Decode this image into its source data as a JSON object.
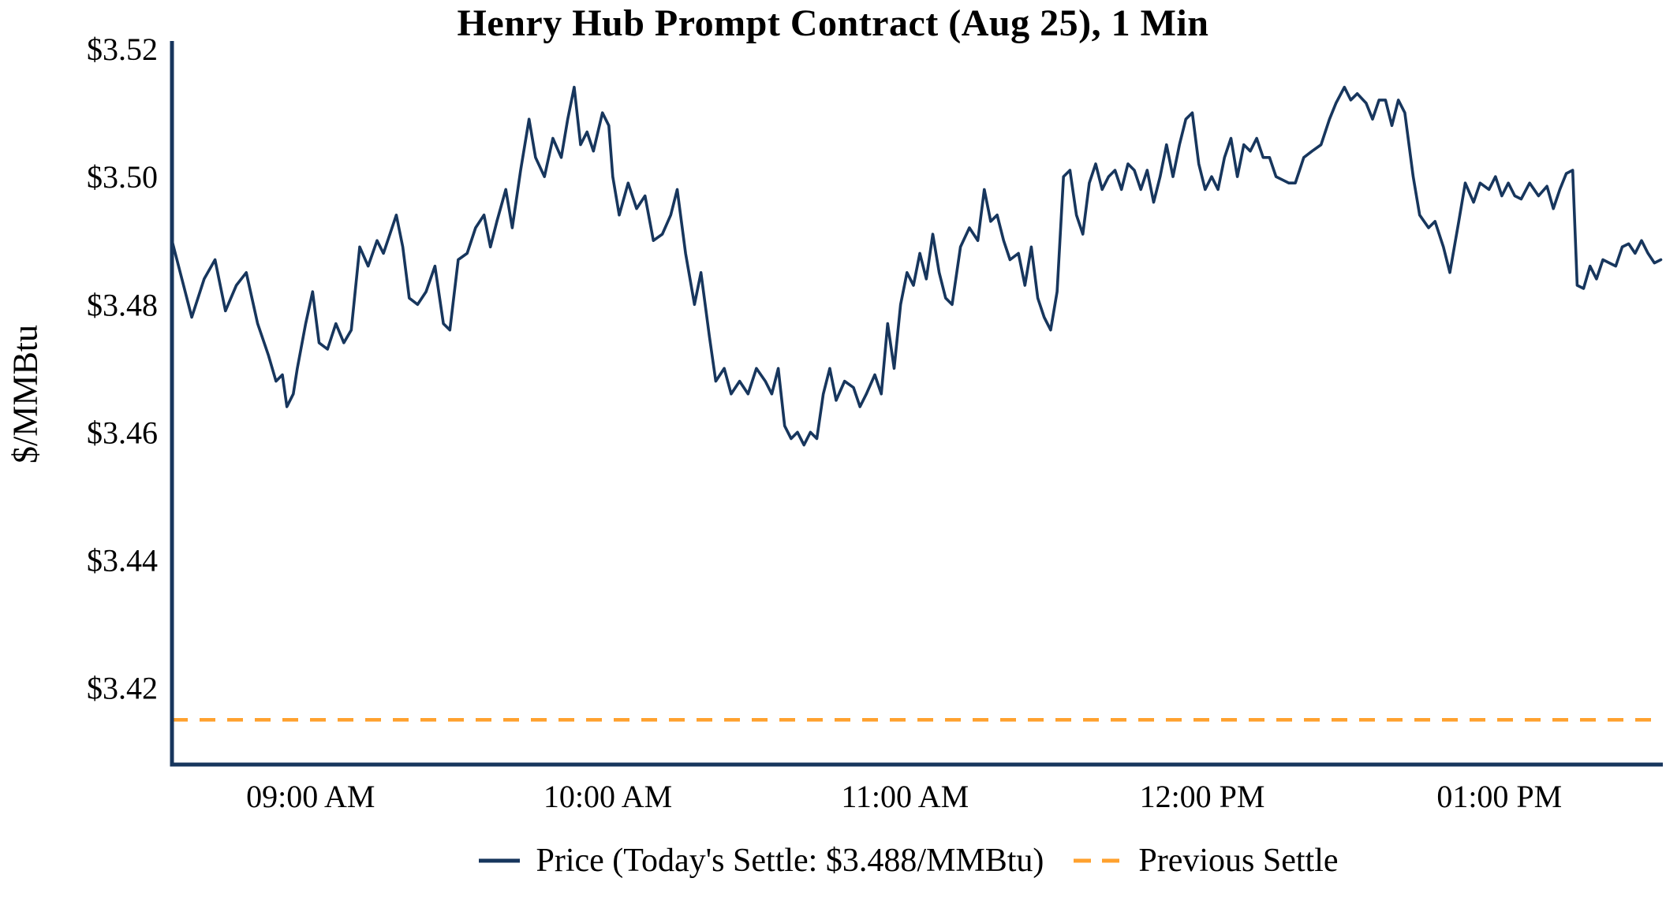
{
  "title": "Henry Hub Prompt Contract (Aug 25), 1 Min",
  "ylabel": "$/MMBtu",
  "legend": [
    {
      "label": "Price (Today's Settle: $3.488/MMBtu)",
      "color": "#17365d",
      "style": "solid"
    },
    {
      "label": "Previous Settle",
      "color": "#ffa12e",
      "style": "dashed"
    }
  ],
  "colors": {
    "axis": "#17365d",
    "price_line": "#17365d",
    "previous_settle": "#ffa12e",
    "text": "#000000"
  },
  "chart_data": {
    "type": "line",
    "title": "Henry Hub Prompt Contract (Aug 25), 1 Min",
    "xlabel": "",
    "ylabel": "$/MMBtu",
    "ylim": [
      3.408,
      3.52
    ],
    "xlim_minutes": [
      0,
      301
    ],
    "grid": false,
    "legend_position": "bottom",
    "today_settle": 3.488,
    "previous_settle": 3.415,
    "y_ticks": [
      {
        "value": 3.42,
        "label": "$3.42"
      },
      {
        "value": 3.44,
        "label": "$3.44"
      },
      {
        "value": 3.46,
        "label": "$3.46"
      },
      {
        "value": 3.48,
        "label": "$3.48"
      },
      {
        "value": 3.5,
        "label": "$3.50"
      },
      {
        "value": 3.52,
        "label": "$3.52"
      }
    ],
    "x_ticks": [
      {
        "minute": 28,
        "label": "09:00 AM"
      },
      {
        "minute": 88,
        "label": "10:00 AM"
      },
      {
        "minute": 148,
        "label": "11:00 AM"
      },
      {
        "minute": 208,
        "label": "12:00 PM"
      },
      {
        "minute": 268,
        "label": "01:00 PM"
      }
    ],
    "series": [
      {
        "name": "Price (Today's Settle: $3.488/MMBtu)",
        "type": "line",
        "color": "#17365d",
        "points": [
          [
            0,
            3.49
          ],
          [
            2,
            3.484
          ],
          [
            4,
            3.478
          ],
          [
            6.5,
            3.484
          ],
          [
            8.7,
            3.487
          ],
          [
            10.8,
            3.479
          ],
          [
            13,
            3.483
          ],
          [
            15,
            3.485
          ],
          [
            17.3,
            3.477
          ],
          [
            19.5,
            3.472
          ],
          [
            21,
            3.468
          ],
          [
            22.3,
            3.469
          ],
          [
            23.2,
            3.464
          ],
          [
            24.5,
            3.466
          ],
          [
            25.3,
            3.47
          ],
          [
            27,
            3.477
          ],
          [
            28.4,
            3.482
          ],
          [
            29.7,
            3.474
          ],
          [
            31.4,
            3.473
          ],
          [
            33.1,
            3.477
          ],
          [
            34.7,
            3.474
          ],
          [
            36.2,
            3.476
          ],
          [
            37.9,
            3.489
          ],
          [
            39.6,
            3.486
          ],
          [
            41.4,
            3.49
          ],
          [
            42.7,
            3.488
          ],
          [
            44,
            3.491
          ],
          [
            45.3,
            3.494
          ],
          [
            46.6,
            3.489
          ],
          [
            47.9,
            3.481
          ],
          [
            49.6,
            3.48
          ],
          [
            51.3,
            3.482
          ],
          [
            53.1,
            3.486
          ],
          [
            54.8,
            3.477
          ],
          [
            56.1,
            3.476
          ],
          [
            57.8,
            3.487
          ],
          [
            59.6,
            3.488
          ],
          [
            61.3,
            3.492
          ],
          [
            63,
            3.494
          ],
          [
            64.3,
            3.489
          ],
          [
            65.6,
            3.493
          ],
          [
            67.4,
            3.498
          ],
          [
            68.7,
            3.492
          ],
          [
            70.4,
            3.501
          ],
          [
            72.1,
            3.509
          ],
          [
            73.4,
            3.503
          ],
          [
            75.2,
            3.5
          ],
          [
            76.9,
            3.506
          ],
          [
            78.6,
            3.503
          ],
          [
            79.9,
            3.509
          ],
          [
            81.2,
            3.514
          ],
          [
            82.5,
            3.505
          ],
          [
            83.8,
            3.507
          ],
          [
            85.1,
            3.504
          ],
          [
            86.9,
            3.51
          ],
          [
            88.2,
            3.508
          ],
          [
            89,
            3.5
          ],
          [
            90.3,
            3.494
          ],
          [
            92.1,
            3.499
          ],
          [
            93.8,
            3.495
          ],
          [
            95.5,
            3.497
          ],
          [
            97.2,
            3.49
          ],
          [
            99,
            3.491
          ],
          [
            100.7,
            3.494
          ],
          [
            102,
            3.498
          ],
          [
            103.7,
            3.488
          ],
          [
            105.5,
            3.48
          ],
          [
            106.8,
            3.485
          ],
          [
            108.5,
            3.475
          ],
          [
            109.8,
            3.468
          ],
          [
            111.5,
            3.47
          ],
          [
            112.9,
            3.466
          ],
          [
            114.6,
            3.468
          ],
          [
            116.3,
            3.466
          ],
          [
            118,
            3.47
          ],
          [
            119.8,
            3.468
          ],
          [
            121.1,
            3.466
          ],
          [
            122.4,
            3.47
          ],
          [
            123.7,
            3.461
          ],
          [
            125,
            3.459
          ],
          [
            126.3,
            3.46
          ],
          [
            127.6,
            3.458
          ],
          [
            128.9,
            3.46
          ],
          [
            130.2,
            3.459
          ],
          [
            131.5,
            3.466
          ],
          [
            132.8,
            3.47
          ],
          [
            134.1,
            3.465
          ],
          [
            135.8,
            3.468
          ],
          [
            137.6,
            3.467
          ],
          [
            138.9,
            3.464
          ],
          [
            140.2,
            3.466
          ],
          [
            141.9,
            3.469
          ],
          [
            143.2,
            3.466
          ],
          [
            144.5,
            3.477
          ],
          [
            145.8,
            3.47
          ],
          [
            147.1,
            3.48
          ],
          [
            148.4,
            3.485
          ],
          [
            149.7,
            3.483
          ],
          [
            151,
            3.488
          ],
          [
            152.3,
            3.484
          ],
          [
            153.6,
            3.491
          ],
          [
            154.9,
            3.485
          ],
          [
            156.2,
            3.481
          ],
          [
            157.5,
            3.48
          ],
          [
            159.2,
            3.489
          ],
          [
            161,
            3.492
          ],
          [
            162.7,
            3.49
          ],
          [
            164,
            3.498
          ],
          [
            165.3,
            3.493
          ],
          [
            166.6,
            3.494
          ],
          [
            167.9,
            3.49
          ],
          [
            169.2,
            3.487
          ],
          [
            170.9,
            3.488
          ],
          [
            172.2,
            3.483
          ],
          [
            173.5,
            3.489
          ],
          [
            174.8,
            3.481
          ],
          [
            176.1,
            3.478
          ],
          [
            177.4,
            3.476
          ],
          [
            178.7,
            3.482
          ],
          [
            180,
            3.5
          ],
          [
            181.3,
            3.501
          ],
          [
            182.6,
            3.494
          ],
          [
            183.9,
            3.491
          ],
          [
            185.2,
            3.499
          ],
          [
            186.5,
            3.502
          ],
          [
            187.8,
            3.498
          ],
          [
            189.1,
            3.5
          ],
          [
            190.4,
            3.501
          ],
          [
            191.7,
            3.498
          ],
          [
            193,
            3.502
          ],
          [
            194.3,
            3.501
          ],
          [
            195.6,
            3.498
          ],
          [
            196.9,
            3.501
          ],
          [
            198.2,
            3.496
          ],
          [
            199.5,
            3.5
          ],
          [
            200.8,
            3.505
          ],
          [
            202.1,
            3.5
          ],
          [
            203.4,
            3.505
          ],
          [
            204.7,
            3.509
          ],
          [
            206,
            3.51
          ],
          [
            207.3,
            3.502
          ],
          [
            208.6,
            3.498
          ],
          [
            209.9,
            3.5
          ],
          [
            211.2,
            3.498
          ],
          [
            212.5,
            3.503
          ],
          [
            213.8,
            3.506
          ],
          [
            215.1,
            3.5
          ],
          [
            216.4,
            3.505
          ],
          [
            217.7,
            3.504
          ],
          [
            219,
            3.506
          ],
          [
            220.3,
            3.503
          ],
          [
            221.6,
            3.503
          ],
          [
            222.9,
            3.5
          ],
          [
            224.2,
            3.4995
          ],
          [
            225.5,
            3.499
          ],
          [
            226.8,
            3.499
          ],
          [
            228.5,
            3.503
          ],
          [
            230.2,
            3.504
          ],
          [
            232,
            3.505
          ],
          [
            233.7,
            3.509
          ],
          [
            235,
            3.5115
          ],
          [
            236.7,
            3.514
          ],
          [
            238,
            3.512
          ],
          [
            239.3,
            3.513
          ],
          [
            241.1,
            3.5115
          ],
          [
            242.4,
            3.509
          ],
          [
            243.7,
            3.512
          ],
          [
            245,
            3.512
          ],
          [
            246.3,
            3.508
          ],
          [
            247.6,
            3.512
          ],
          [
            248.9,
            3.51
          ],
          [
            250.6,
            3.5
          ],
          [
            251.9,
            3.494
          ],
          [
            253.7,
            3.492
          ],
          [
            255,
            3.493
          ],
          [
            256.7,
            3.489
          ],
          [
            258,
            3.485
          ],
          [
            259.8,
            3.493
          ],
          [
            261.1,
            3.499
          ],
          [
            262.8,
            3.496
          ],
          [
            264.1,
            3.499
          ],
          [
            265.9,
            3.498
          ],
          [
            267.2,
            3.5
          ],
          [
            268.5,
            3.497
          ],
          [
            269.8,
            3.499
          ],
          [
            271.1,
            3.497
          ],
          [
            272.4,
            3.4965
          ],
          [
            274.1,
            3.499
          ],
          [
            275.9,
            3.497
          ],
          [
            277.6,
            3.4985
          ],
          [
            278.9,
            3.495
          ],
          [
            280.2,
            3.498
          ],
          [
            281.5,
            3.5005
          ],
          [
            282.8,
            3.501
          ],
          [
            283.7,
            3.483
          ],
          [
            285,
            3.4825
          ],
          [
            286.3,
            3.486
          ],
          [
            287.6,
            3.484
          ],
          [
            288.9,
            3.487
          ],
          [
            290.2,
            3.4865
          ],
          [
            291.5,
            3.486
          ],
          [
            292.8,
            3.489
          ],
          [
            294.1,
            3.4895
          ],
          [
            295.4,
            3.488
          ],
          [
            296.7,
            3.49
          ],
          [
            298,
            3.488
          ],
          [
            299.3,
            3.4865
          ],
          [
            300.6,
            3.487
          ]
        ]
      },
      {
        "name": "Previous Settle",
        "type": "hline",
        "style": "dashed",
        "color": "#ffa12e",
        "value": 3.415
      }
    ]
  }
}
